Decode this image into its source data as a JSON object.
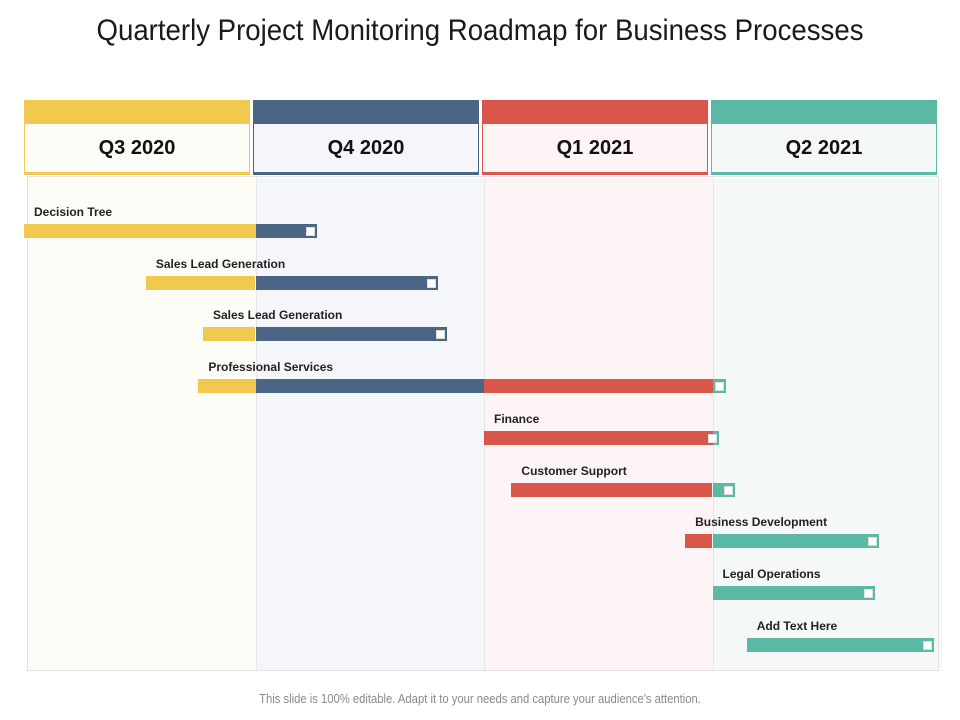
{
  "title": "Quarterly Project Monitoring Roadmap for Business Processes",
  "footer": "This slide is 100% editable. Adapt it to your needs and capture your audience's attention.",
  "colors": {
    "q3": "#f0c94e",
    "q4": "#4b6584",
    "q1": "#d9574a",
    "q2": "#5bb8a4"
  },
  "quarters": [
    {
      "label": "Q3 2020",
      "color": "#f0c94e",
      "tint": "#fdfcf6"
    },
    {
      "label": "Q4 2020",
      "color": "#4b6584",
      "tint": "#f5f6f9"
    },
    {
      "label": "Q1 2021",
      "color": "#d9574a",
      "tint": "#fdf5f5"
    },
    {
      "label": "Q2 2021",
      "color": "#5bb8a4",
      "tint": "#f4f9f8"
    }
  ],
  "tasks": [
    {
      "label": "Decision Tree",
      "start_quarter": 0.0,
      "end_quarter": 1.27
    },
    {
      "label": "Sales Lead Generation",
      "start_quarter": 0.52,
      "end_quarter": 1.8
    },
    {
      "label": "Sales Lead Generation",
      "start_quarter": 0.77,
      "end_quarter": 1.84
    },
    {
      "label": "Professional Services",
      "start_quarter": 0.75,
      "end_quarter": 3.06
    },
    {
      "label": "Finance",
      "start_quarter": 2.0,
      "end_quarter": 3.03
    },
    {
      "label": "Customer Support",
      "start_quarter": 2.12,
      "end_quarter": 3.1
    },
    {
      "label": "Business Development",
      "start_quarter": 2.88,
      "end_quarter": 3.73
    },
    {
      "label": "Legal Operations",
      "start_quarter": 3.0,
      "end_quarter": 3.71
    },
    {
      "label": "Add Text Here",
      "start_quarter": 3.15,
      "end_quarter": 3.97
    }
  ]
}
